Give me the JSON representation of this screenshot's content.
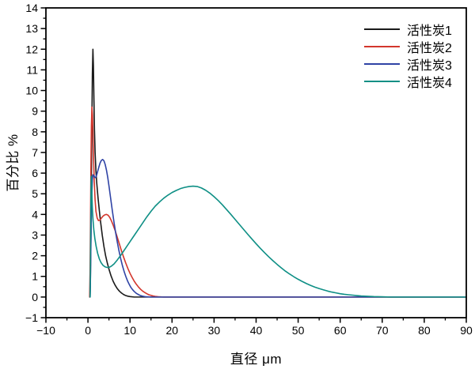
{
  "chart_data": {
    "type": "line",
    "title": "",
    "xlabel": "直径 μm",
    "ylabel": "百分比 %",
    "xlim": [
      -10,
      90
    ],
    "ylim": [
      -1,
      14
    ],
    "xticks": [
      -10,
      0,
      10,
      20,
      30,
      40,
      50,
      60,
      70,
      80,
      90
    ],
    "yticks": [
      -1,
      0,
      1,
      2,
      3,
      4,
      5,
      6,
      7,
      8,
      9,
      10,
      11,
      12,
      13,
      14
    ],
    "x_minor_step": 5,
    "y_minor_step": 0.5,
    "grid": false,
    "frame_color": "#000000",
    "legend_position": "top-right-inside",
    "series": [
      {
        "name": "活性炭1",
        "color": "#1a1a1a",
        "points": [
          [
            0.5,
            0
          ],
          [
            0.58,
            0.8
          ],
          [
            0.68,
            2.6
          ],
          [
            0.8,
            5.2
          ],
          [
            0.92,
            8.2
          ],
          [
            1.05,
            10.8
          ],
          [
            1.18,
            12.0
          ],
          [
            1.3,
            11.2
          ],
          [
            1.42,
            9.6
          ],
          [
            1.55,
            8.1
          ],
          [
            1.7,
            7.0
          ],
          [
            1.9,
            6.1
          ],
          [
            2.1,
            5.5
          ],
          [
            2.4,
            4.8
          ],
          [
            2.7,
            4.2
          ],
          [
            3.0,
            3.65
          ],
          [
            3.4,
            3.0
          ],
          [
            3.8,
            2.45
          ],
          [
            4.2,
            2.0
          ],
          [
            4.6,
            1.65
          ],
          [
            5.0,
            1.35
          ],
          [
            5.5,
            1.02
          ],
          [
            6.0,
            0.76
          ],
          [
            6.5,
            0.56
          ],
          [
            7.0,
            0.4
          ],
          [
            7.5,
            0.28
          ],
          [
            8.0,
            0.19
          ],
          [
            8.5,
            0.12
          ],
          [
            9.0,
            0.07
          ],
          [
            9.5,
            0.04
          ],
          [
            10.0,
            0.02
          ],
          [
            11,
            0
          ],
          [
            90,
            0
          ]
        ]
      },
      {
        "name": "活性炭2",
        "color": "#d3362c",
        "points": [
          [
            0.4,
            0
          ],
          [
            0.5,
            1.2
          ],
          [
            0.6,
            3.5
          ],
          [
            0.7,
            6.2
          ],
          [
            0.82,
            8.3
          ],
          [
            0.95,
            9.2
          ],
          [
            1.08,
            8.8
          ],
          [
            1.2,
            7.8
          ],
          [
            1.35,
            6.6
          ],
          [
            1.5,
            5.6
          ],
          [
            1.7,
            4.7
          ],
          [
            1.9,
            4.15
          ],
          [
            2.2,
            3.82
          ],
          [
            2.5,
            3.7
          ],
          [
            2.8,
            3.72
          ],
          [
            3.2,
            3.82
          ],
          [
            3.6,
            3.92
          ],
          [
            4.0,
            3.98
          ],
          [
            4.4,
            4.0
          ],
          [
            4.8,
            3.96
          ],
          [
            5.2,
            3.85
          ],
          [
            5.6,
            3.68
          ],
          [
            6.0,
            3.48
          ],
          [
            6.5,
            3.2
          ],
          [
            7.0,
            2.88
          ],
          [
            7.5,
            2.55
          ],
          [
            8.0,
            2.22
          ],
          [
            8.5,
            1.92
          ],
          [
            9.0,
            1.64
          ],
          [
            9.5,
            1.38
          ],
          [
            10,
            1.15
          ],
          [
            10.5,
            0.95
          ],
          [
            11,
            0.77
          ],
          [
            11.5,
            0.62
          ],
          [
            12,
            0.49
          ],
          [
            12.5,
            0.38
          ],
          [
            13,
            0.29
          ],
          [
            13.5,
            0.22
          ],
          [
            14,
            0.16
          ],
          [
            14.5,
            0.11
          ],
          [
            15,
            0.08
          ],
          [
            15.5,
            0.05
          ],
          [
            16,
            0.03
          ],
          [
            17,
            0.01
          ],
          [
            18,
            0
          ],
          [
            90,
            0
          ]
        ]
      },
      {
        "name": "活性炭3",
        "color": "#2f43a5",
        "points": [
          [
            0.5,
            0
          ],
          [
            0.58,
            0.7
          ],
          [
            0.68,
            2.2
          ],
          [
            0.8,
            3.9
          ],
          [
            0.92,
            5.0
          ],
          [
            1.05,
            5.7
          ],
          [
            1.2,
            5.92
          ],
          [
            1.4,
            5.88
          ],
          [
            1.6,
            5.8
          ],
          [
            1.8,
            5.78
          ],
          [
            2.0,
            5.86
          ],
          [
            2.3,
            6.08
          ],
          [
            2.6,
            6.3
          ],
          [
            2.9,
            6.5
          ],
          [
            3.2,
            6.62
          ],
          [
            3.5,
            6.66
          ],
          [
            3.8,
            6.6
          ],
          [
            4.1,
            6.42
          ],
          [
            4.4,
            6.15
          ],
          [
            4.7,
            5.8
          ],
          [
            5.0,
            5.38
          ],
          [
            5.4,
            4.78
          ],
          [
            5.8,
            4.18
          ],
          [
            6.2,
            3.62
          ],
          [
            6.6,
            3.1
          ],
          [
            7.0,
            2.64
          ],
          [
            7.4,
            2.22
          ],
          [
            7.8,
            1.85
          ],
          [
            8.2,
            1.52
          ],
          [
            8.6,
            1.24
          ],
          [
            9.0,
            1.0
          ],
          [
            9.4,
            0.79
          ],
          [
            9.8,
            0.62
          ],
          [
            10.2,
            0.47
          ],
          [
            10.6,
            0.36
          ],
          [
            11,
            0.27
          ],
          [
            11.5,
            0.18
          ],
          [
            12,
            0.12
          ],
          [
            12.5,
            0.07
          ],
          [
            13,
            0.04
          ],
          [
            13.5,
            0.02
          ],
          [
            14,
            0.01
          ],
          [
            15,
            0
          ],
          [
            90,
            0
          ]
        ]
      },
      {
        "name": "活性炭4",
        "color": "#0e8f85",
        "points": [
          [
            0.5,
            0
          ],
          [
            0.56,
            1.0
          ],
          [
            0.63,
            2.8
          ],
          [
            0.7,
            4.6
          ],
          [
            0.76,
            5.6
          ],
          [
            0.8,
            5.85
          ],
          [
            0.86,
            5.6
          ],
          [
            0.95,
            4.9
          ],
          [
            1.05,
            4.3
          ],
          [
            1.2,
            3.75
          ],
          [
            1.4,
            3.25
          ],
          [
            1.65,
            2.82
          ],
          [
            1.95,
            2.45
          ],
          [
            2.3,
            2.12
          ],
          [
            2.7,
            1.85
          ],
          [
            3.1,
            1.67
          ],
          [
            3.6,
            1.53
          ],
          [
            4.1,
            1.46
          ],
          [
            4.6,
            1.43
          ],
          [
            5.1,
            1.44
          ],
          [
            5.6,
            1.5
          ],
          [
            6.2,
            1.6
          ],
          [
            7,
            1.8
          ],
          [
            8,
            2.08
          ],
          [
            9,
            2.38
          ],
          [
            10,
            2.68
          ],
          [
            11,
            2.98
          ],
          [
            12,
            3.28
          ],
          [
            13,
            3.58
          ],
          [
            14,
            3.88
          ],
          [
            15,
            4.15
          ],
          [
            16,
            4.4
          ],
          [
            17,
            4.6
          ],
          [
            18,
            4.78
          ],
          [
            19,
            4.93
          ],
          [
            20,
            5.06
          ],
          [
            21,
            5.16
          ],
          [
            22,
            5.25
          ],
          [
            23,
            5.31
          ],
          [
            24,
            5.35
          ],
          [
            25,
            5.37
          ],
          [
            26,
            5.35
          ],
          [
            27,
            5.28
          ],
          [
            28,
            5.17
          ],
          [
            29,
            5.03
          ],
          [
            30,
            4.86
          ],
          [
            31,
            4.67
          ],
          [
            32,
            4.46
          ],
          [
            33,
            4.23
          ],
          [
            34,
            4.0
          ],
          [
            35,
            3.76
          ],
          [
            36,
            3.52
          ],
          [
            37,
            3.28
          ],
          [
            38,
            3.04
          ],
          [
            39,
            2.81
          ],
          [
            40,
            2.58
          ],
          [
            41,
            2.36
          ],
          [
            42,
            2.15
          ],
          [
            43,
            1.95
          ],
          [
            44,
            1.76
          ],
          [
            45,
            1.58
          ],
          [
            46,
            1.41
          ],
          [
            47,
            1.25
          ],
          [
            48,
            1.11
          ],
          [
            49,
            0.98
          ],
          [
            50,
            0.86
          ],
          [
            51,
            0.75
          ],
          [
            52,
            0.65
          ],
          [
            53,
            0.56
          ],
          [
            54,
            0.48
          ],
          [
            55,
            0.41
          ],
          [
            56,
            0.35
          ],
          [
            57,
            0.29
          ],
          [
            58,
            0.24
          ],
          [
            59,
            0.2
          ],
          [
            60,
            0.16
          ],
          [
            61,
            0.13
          ],
          [
            62,
            0.11
          ],
          [
            63,
            0.09
          ],
          [
            64,
            0.07
          ],
          [
            65,
            0.05
          ],
          [
            66,
            0.04
          ],
          [
            68,
            0.02
          ],
          [
            70,
            0.01
          ],
          [
            72,
            0
          ],
          [
            90,
            0
          ]
        ]
      }
    ]
  }
}
